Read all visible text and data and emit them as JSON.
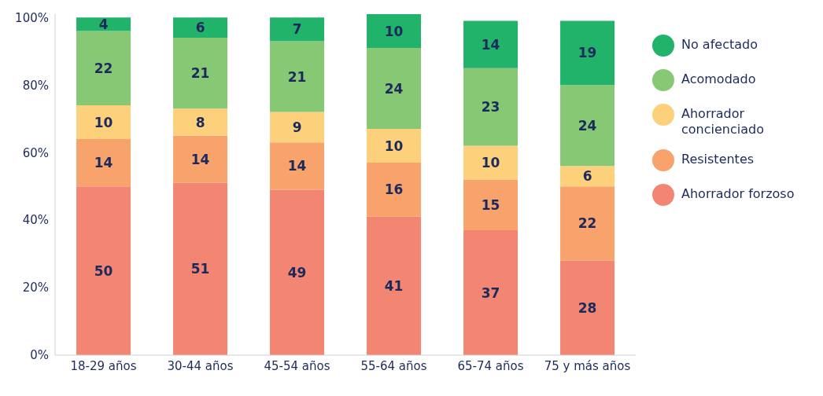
{
  "chart_data": {
    "type": "bar",
    "stacked": true,
    "categories": [
      "18-29 años",
      "30-44 años",
      "45-54 años",
      "55-64 años",
      "65-74 años",
      "75 y más años"
    ],
    "series": [
      {
        "name": "Ahorrador forzoso",
        "color": "#f28672",
        "values": [
          50,
          51,
          49,
          41,
          37,
          28
        ]
      },
      {
        "name": "Resistentes",
        "color": "#f8a26c",
        "values": [
          14,
          14,
          14,
          16,
          15,
          22
        ]
      },
      {
        "name": "Ahorrador concienciado",
        "color": "#fdd17c",
        "values": [
          10,
          8,
          9,
          10,
          10,
          6
        ]
      },
      {
        "name": "Acomodado",
        "color": "#86c874",
        "values": [
          22,
          21,
          21,
          24,
          23,
          24
        ]
      },
      {
        "name": "No afectado",
        "color": "#22b36a",
        "values": [
          4,
          6,
          7,
          10,
          14,
          19
        ]
      }
    ],
    "ylim": [
      0,
      101
    ],
    "yticks": [
      {
        "value": 0,
        "label": "0%"
      },
      {
        "value": 20,
        "label": "20%"
      },
      {
        "value": 40,
        "label": "40%"
      },
      {
        "value": 60,
        "label": "60%"
      },
      {
        "value": 80,
        "label": "80%"
      },
      {
        "value": 100,
        "label": "100%"
      }
    ],
    "data_labels": true,
    "grid": false,
    "legend": "top right"
  }
}
